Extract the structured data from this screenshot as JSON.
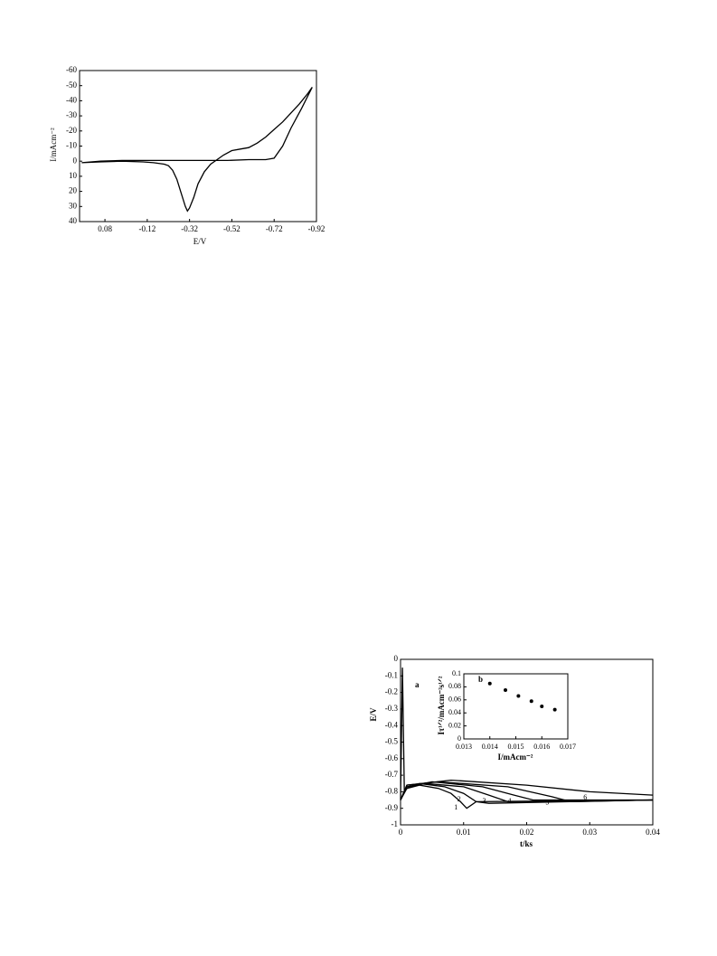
{
  "chart_data": [
    {
      "type": "line",
      "xlabel": "E/V",
      "ylabel": "I/mAcm⁻²",
      "x": [
        0.19,
        0.1,
        0.0,
        -0.1,
        -0.2,
        -0.3,
        -0.4,
        -0.5,
        -0.6,
        -0.68,
        -0.72,
        -0.76,
        -0.8,
        -0.85,
        -0.9,
        -0.88,
        -0.84,
        -0.8,
        -0.76,
        -0.72,
        -0.68,
        -0.64,
        -0.6,
        -0.56,
        -0.52,
        -0.48,
        -0.45,
        -0.42,
        -0.39,
        -0.36,
        -0.34,
        -0.32,
        -0.31,
        -0.3,
        -0.28,
        -0.26,
        -0.24,
        -0.22,
        -0.2,
        -0.15,
        -0.1,
        0.0,
        0.1,
        0.19
      ],
      "series": [
        {
          "color": "#000000",
          "values": [
            1,
            0,
            -0.5,
            -0.5,
            -0.5,
            -0.5,
            -0.5,
            -0.5,
            -1,
            -1,
            -2,
            -10,
            -22,
            -35,
            -49,
            -45,
            -38,
            -32,
            -26,
            -21,
            -16,
            -12,
            -9,
            -8,
            -7,
            -4,
            -1,
            2,
            7,
            15,
            24,
            31,
            33,
            30,
            21,
            12,
            6,
            3,
            2,
            1,
            0.5,
            0,
            0.5,
            1
          ]
        }
      ],
      "xlim": [
        0.2,
        -0.92
      ],
      "xticks": [
        0.08,
        -0.12,
        -0.32,
        -0.52,
        -0.72,
        -0.92
      ],
      "ylim": [
        40,
        -60
      ],
      "yticks": [
        -60,
        -50,
        -40,
        -30,
        -20,
        -10,
        0,
        10,
        20,
        30,
        40
      ]
    },
    {
      "type": "line",
      "xlabel": "t/ks",
      "ylabel": "E/V",
      "annotation": "a",
      "series": [
        {
          "name": "1",
          "color": "#000000",
          "x": [
            0,
            0.0003,
            0.0006,
            0.001,
            0.003,
            0.006,
            0.008,
            0.0095,
            0.0105,
            0.012,
            0.04
          ],
          "values": [
            -0.85,
            -0.05,
            -0.8,
            -0.78,
            -0.76,
            -0.78,
            -0.81,
            -0.86,
            -0.9,
            -0.86,
            -0.85
          ]
        },
        {
          "name": "2",
          "color": "#000000",
          "x": [
            0,
            0.001,
            0.003,
            0.007,
            0.01,
            0.012,
            0.014,
            0.04
          ],
          "values": [
            -0.85,
            -0.78,
            -0.75,
            -0.77,
            -0.81,
            -0.86,
            -0.87,
            -0.85
          ]
        },
        {
          "name": "3",
          "color": "#000000",
          "x": [
            0,
            0.001,
            0.004,
            0.01,
            0.014,
            0.017,
            0.04
          ],
          "values": [
            -0.85,
            -0.77,
            -0.75,
            -0.77,
            -0.82,
            -0.86,
            -0.85
          ]
        },
        {
          "name": "4",
          "color": "#000000",
          "x": [
            0,
            0.001,
            0.005,
            0.013,
            0.018,
            0.021,
            0.04
          ],
          "values": [
            -0.85,
            -0.77,
            -0.74,
            -0.77,
            -0.82,
            -0.85,
            -0.85
          ]
        },
        {
          "name": "5",
          "color": "#000000",
          "x": [
            0,
            0.001,
            0.006,
            0.017,
            0.024,
            0.027,
            0.04
          ],
          "values": [
            -0.85,
            -0.76,
            -0.74,
            -0.77,
            -0.83,
            -0.86,
            -0.85
          ]
        },
        {
          "name": "6",
          "color": "#000000",
          "x": [
            0,
            0.001,
            0.008,
            0.02,
            0.03,
            0.04
          ],
          "values": [
            -0.85,
            -0.76,
            -0.73,
            -0.76,
            -0.8,
            -0.82
          ]
        }
      ],
      "xlim": [
        0,
        0.04
      ],
      "xticks": [
        0,
        0.01,
        0.02,
        0.03,
        0.04
      ],
      "ylim": [
        -1,
        0
      ],
      "yticks": [
        0,
        -0.1,
        -0.2,
        -0.3,
        -0.4,
        -0.5,
        -0.6,
        -0.7,
        -0.8,
        -0.9,
        -1
      ]
    },
    {
      "type": "scatter",
      "xlabel": "I/mAcm⁻²",
      "ylabel": "Iτ¹ᐟ²/mAcm⁻²s¹ᐟ²",
      "annotation": "b",
      "x": [
        0.014,
        0.0146,
        0.0151,
        0.0156,
        0.016,
        0.0165
      ],
      "series": [
        {
          "color": "#000000",
          "values": [
            0.085,
            0.075,
            0.066,
            0.058,
            0.05,
            0.045
          ]
        }
      ],
      "xlim": [
        0.013,
        0.017
      ],
      "xticks": [
        0.013,
        0.014,
        0.015,
        0.016,
        0.017
      ],
      "ylim": [
        0,
        0.1
      ],
      "yticks": [
        0,
        0.02,
        0.04,
        0.06,
        0.08,
        0.1
      ]
    }
  ]
}
